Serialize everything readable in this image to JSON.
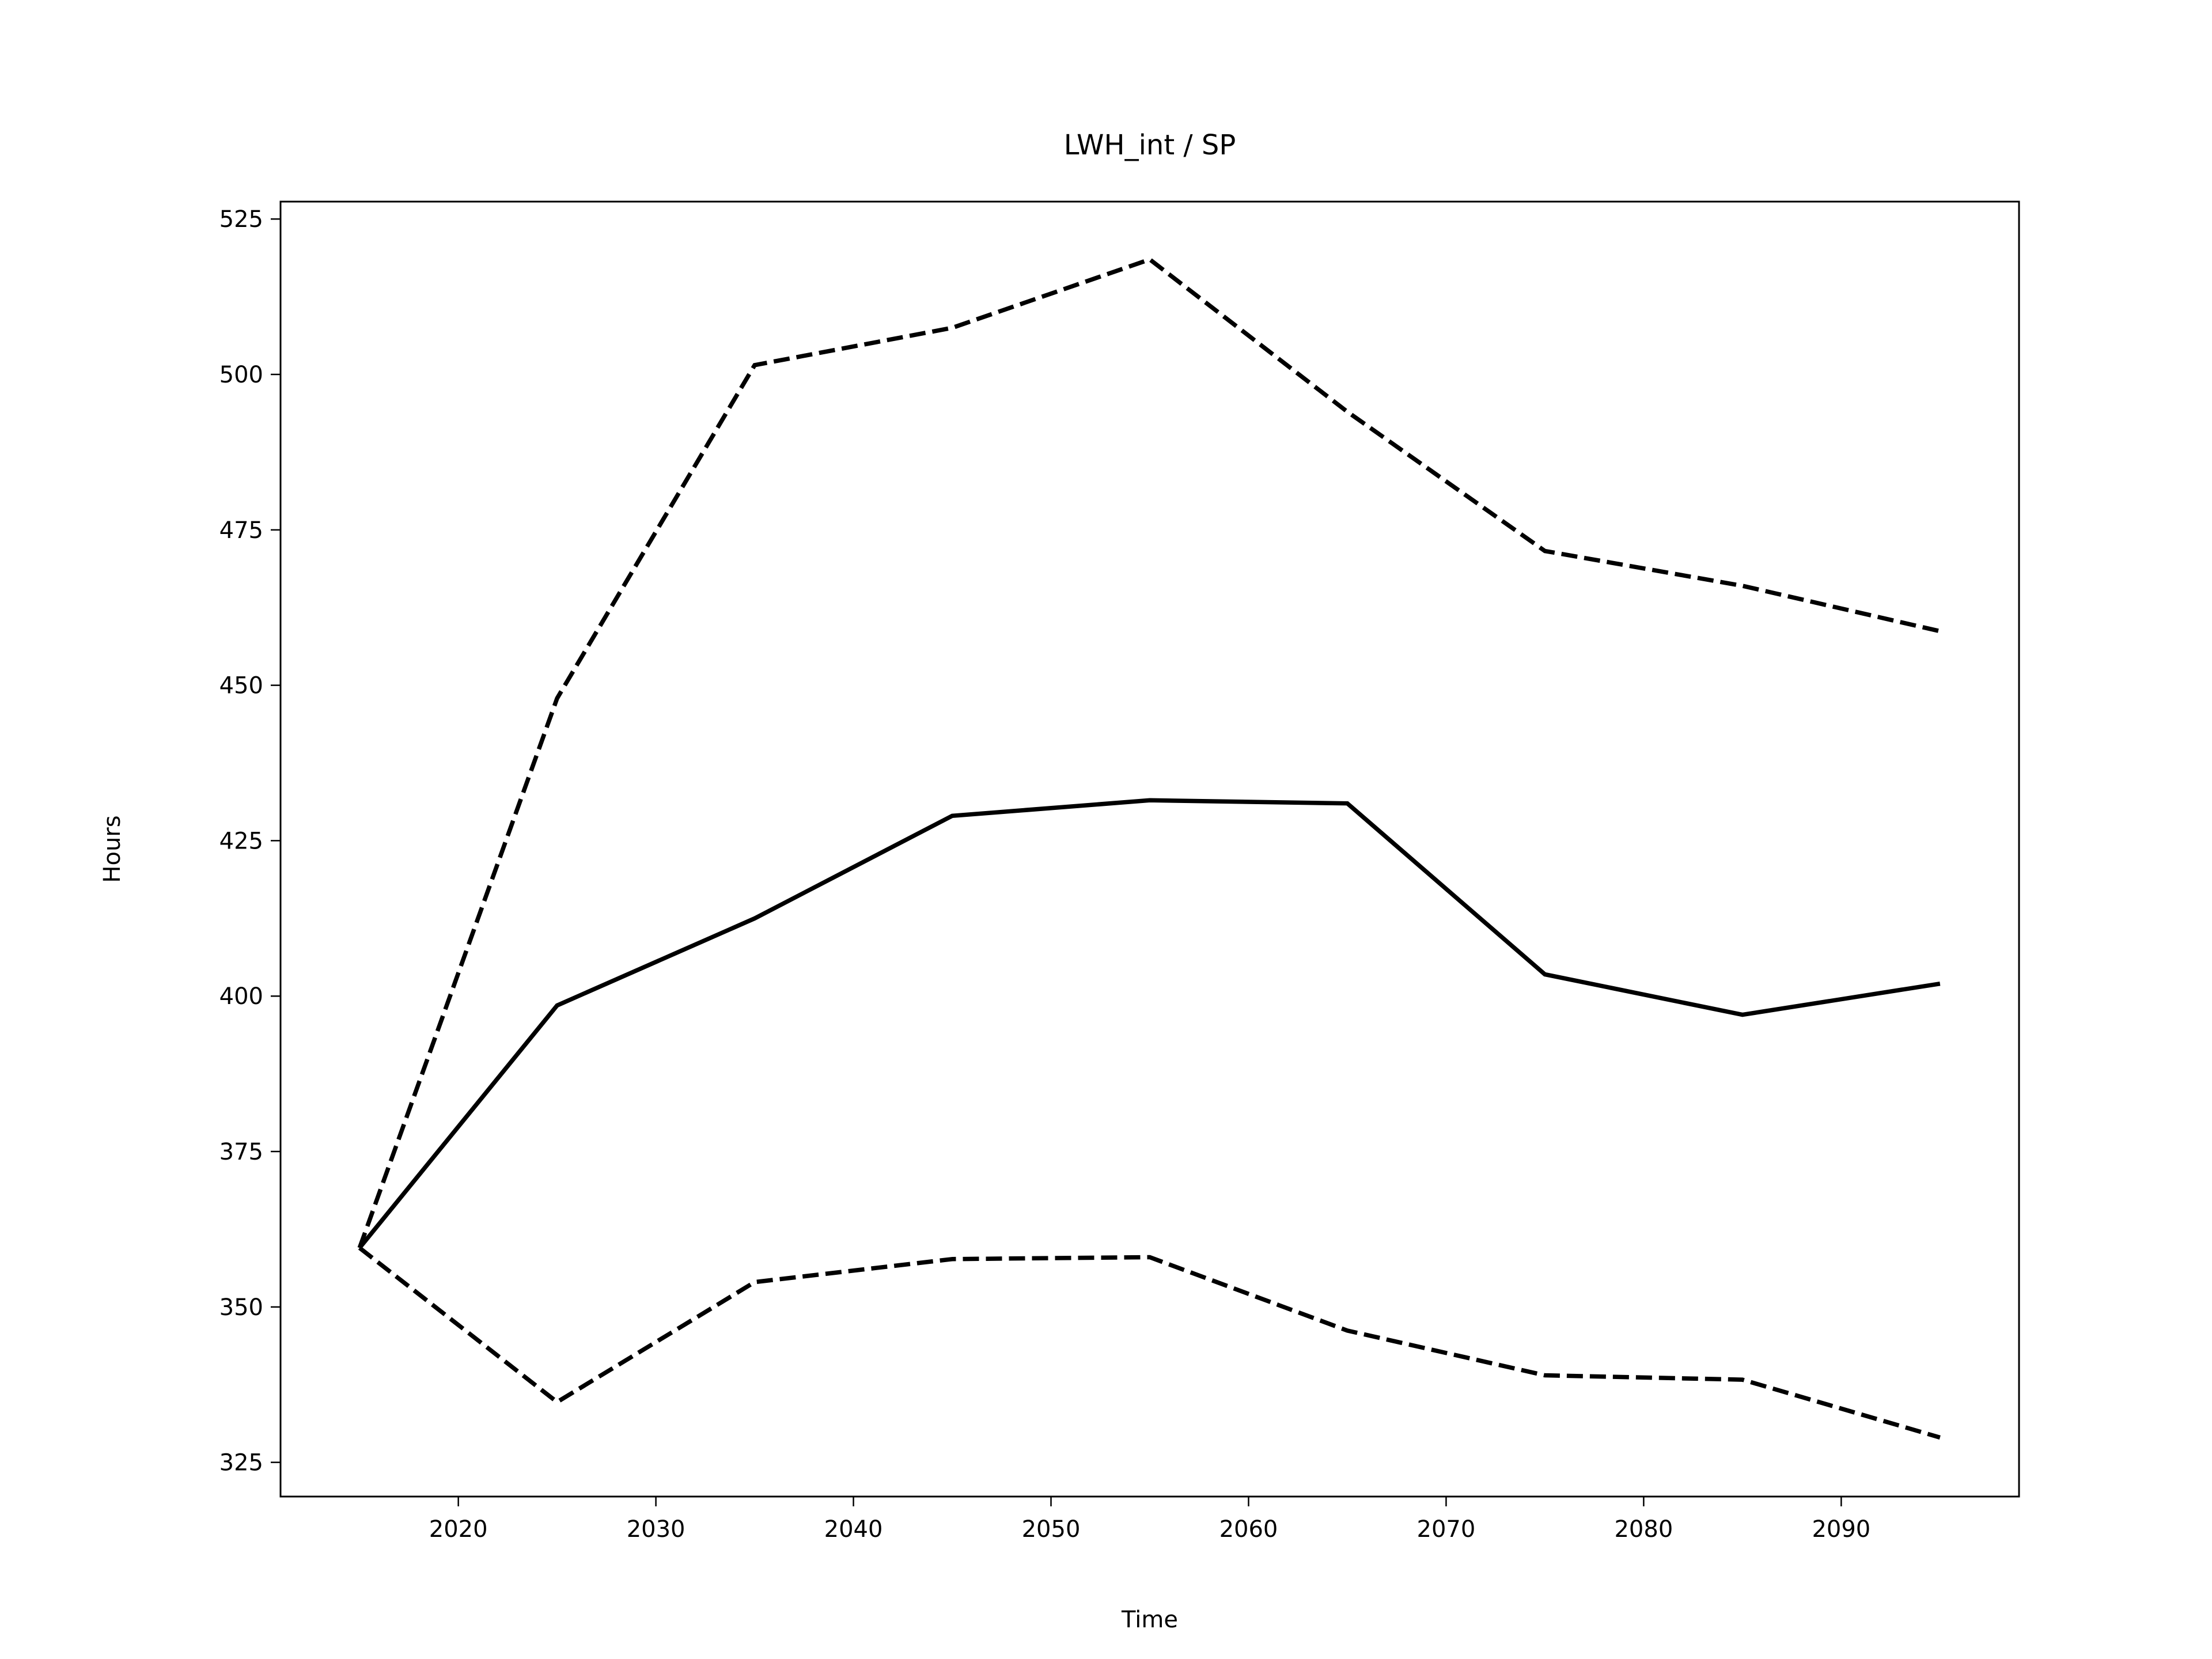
{
  "chart_data": {
    "type": "line",
    "title": "LWH_int / SP",
    "xlabel": "Time",
    "ylabel": "Hours",
    "x": [
      2015,
      2025,
      2035,
      2045,
      2055,
      2065,
      2075,
      2085,
      2095
    ],
    "series": [
      {
        "color": "#000000",
        "dash": false,
        "values": [
          359.5,
          398.5,
          412.5,
          429,
          431.5,
          431,
          403.5,
          397,
          402
        ]
      },
      {
        "color": "#000000",
        "dash": true,
        "values": [
          359.5,
          447.9,
          501.5,
          507.5,
          518.5,
          494,
          471.6,
          466,
          458.7
        ]
      },
      {
        "color": "#000000",
        "dash": true,
        "values": [
          359.5,
          334.7,
          354,
          357.7,
          358,
          346.2,
          339,
          338.3,
          329
        ]
      }
    ],
    "xlim": [
      2011,
      2099
    ],
    "ylim": [
      319.5,
      527.8
    ],
    "xticks": [
      2020,
      2030,
      2040,
      2050,
      2060,
      2070,
      2080,
      2090
    ],
    "yticks": [
      325,
      350,
      375,
      400,
      425,
      450,
      475,
      500,
      525
    ],
    "grid": false
  }
}
